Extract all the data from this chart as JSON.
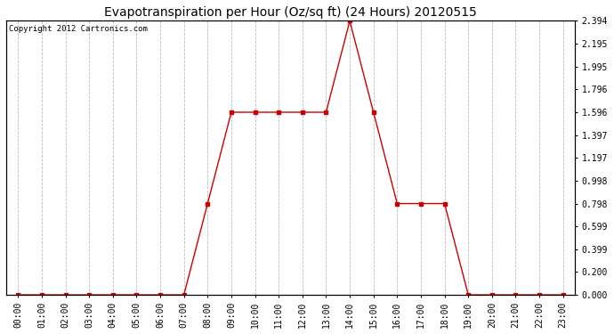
{
  "title": "Evapotranspiration per Hour (Oz/sq ft) (24 Hours) 20120515",
  "copyright": "Copyright 2012 Cartronics.com",
  "x_labels": [
    "00:00",
    "01:00",
    "02:00",
    "03:00",
    "04:00",
    "05:00",
    "06:00",
    "07:00",
    "08:00",
    "09:00",
    "10:00",
    "11:00",
    "12:00",
    "13:00",
    "14:00",
    "15:00",
    "16:00",
    "17:00",
    "18:00",
    "19:00",
    "20:00",
    "21:00",
    "22:00",
    "23:00"
  ],
  "y_values": [
    0.0,
    0.0,
    0.0,
    0.0,
    0.0,
    0.0,
    0.0,
    0.0,
    0.798,
    1.596,
    1.596,
    1.596,
    1.596,
    1.596,
    2.394,
    1.596,
    0.798,
    0.798,
    0.798,
    0.0,
    0.0,
    0.0,
    0.0,
    0.0
  ],
  "y_ticks": [
    0.0,
    0.2,
    0.399,
    0.599,
    0.798,
    0.998,
    1.197,
    1.397,
    1.596,
    1.796,
    1.995,
    2.195,
    2.394
  ],
  "line_color": "#cc0000",
  "marker": "s",
  "marker_size": 3,
  "bg_color": "#ffffff",
  "plot_bg_color": "#ffffff",
  "grid_color": "#bbbbbb",
  "title_fontsize": 10,
  "tick_fontsize": 7,
  "copyright_fontsize": 6.5,
  "ylim": [
    0.0,
    2.394
  ],
  "fig_width": 6.9,
  "fig_height": 3.75,
  "dpi": 100
}
